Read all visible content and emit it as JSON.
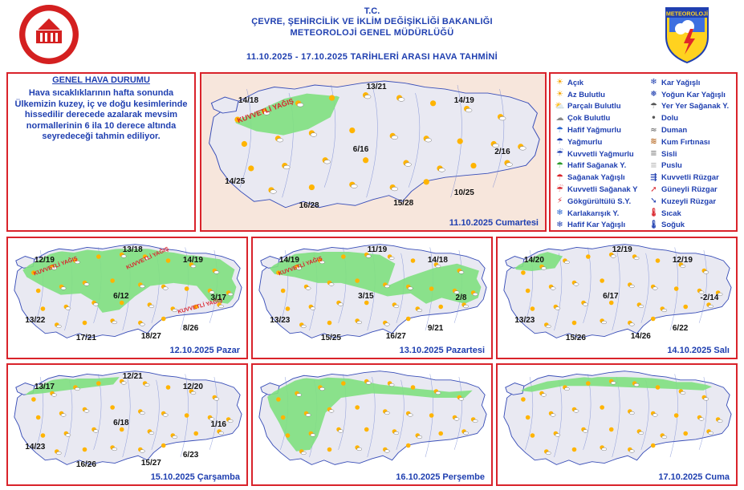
{
  "header": {
    "line1": "T.C.",
    "line2": "ÇEVRE, ŞEHİRCİLİK VE İKLİM DEĞİŞİKLİĞİ BAKANLIĞI",
    "line3": "METEOROLOJİ  GENEL  MÜDÜRLÜĞÜ",
    "line4": "11.10.2025 - 17.10.2025   TARİHLERİ ARASI HAVA TAHMİNİ",
    "logo_text": "METEOROLOJİ"
  },
  "summary": {
    "title": "GENEL HAVA DURUMU",
    "text": "Hava sıcaklıklarının hafta sonunda Ülkemizin kuzey, iç ve doğu kesimlerinde hissedilir derecede azalarak mevsim normallerinin 6 ila 10 derece altında seyredeceği tahmin ediliyor."
  },
  "colors": {
    "frame": "#d9232b",
    "title": "#1f3fb0",
    "map_fill": "#e9e9f2",
    "rain_area": "#7fe07f",
    "sea": "#f7e6dc"
  },
  "days": [
    {
      "date_label": "11.10.2025 Cumartesi",
      "annotations": [
        "KUVVETLİ YAĞIŞ"
      ],
      "temps": [
        "14/18",
        "13/21",
        "14/19",
        "6/16",
        "2/16",
        "14/25",
        "10/25",
        "15/28",
        "16/28"
      ]
    },
    {
      "date_label": "12.10.2025 Pazar",
      "annotations": [
        "KUVVETLİ YAĞIŞ",
        "KUVVETLİ YAĞIŞ",
        "KUVVETLİ YAĞIŞ"
      ],
      "temps": [
        "12/19",
        "13/18",
        "14/19",
        "6/12",
        "3/17",
        "13/22",
        "8/26",
        "18/27",
        "17/21"
      ]
    },
    {
      "date_label": "13.10.2025 Pazartesi",
      "annotations": [
        "KUVVETLİ YAĞIŞ"
      ],
      "temps": [
        "14/19",
        "11/19",
        "14/18",
        "3/15",
        "2/8",
        "13/23",
        "9/21",
        "16/27",
        "15/25"
      ]
    },
    {
      "date_label": "14.10.2025 Salı",
      "annotations": [],
      "temps": [
        "14/20",
        "12/19",
        "12/19",
        "6/17",
        "-2/14",
        "13/23",
        "6/22",
        "14/26",
        "15/26"
      ]
    },
    {
      "date_label": "15.10.2025 Çarşamba",
      "annotations": [],
      "temps": [
        "13/17",
        "12/21",
        "12/20",
        "6/18",
        "1/16",
        "14/23",
        "6/23",
        "15/27",
        "16/26"
      ]
    },
    {
      "date_label": "16.10.2025 Perşembe",
      "annotations": [],
      "temps": []
    },
    {
      "date_label": "17.10.2025 Cuma",
      "annotations": [],
      "temps": []
    }
  ],
  "legend": {
    "col1": [
      {
        "label": "Açık",
        "icon": "sun-icon"
      },
      {
        "label": "Az Bulutlu",
        "icon": "few-clouds-icon"
      },
      {
        "label": "Parçalı Bulutlu",
        "icon": "partly-cloudy-icon"
      },
      {
        "label": "Çok Bulutlu",
        "icon": "cloudy-icon"
      },
      {
        "label": "Hafif Yağmurlu",
        "icon": "light-rain-icon"
      },
      {
        "label": "Yağmurlu",
        "icon": "rain-icon"
      },
      {
        "label": "Kuvvetli Yağmurlu",
        "icon": "heavy-rain-icon"
      },
      {
        "label": "Hafif Sağanak Y.",
        "icon": "light-shower-icon"
      },
      {
        "label": "Sağanak Yağışlı",
        "icon": "shower-icon"
      },
      {
        "label": "Kuvvetli Sağanak Y",
        "icon": "heavy-shower-icon"
      },
      {
        "label": "Gökgürültülü S.Y.",
        "icon": "thunderstorm-icon"
      },
      {
        "label": "Karlakarışık Y.",
        "icon": "sleet-icon"
      },
      {
        "label": "Hafif Kar Yağışlı",
        "icon": "light-snow-icon"
      }
    ],
    "col2": [
      {
        "label": "Kar Yağışlı",
        "icon": "snow-icon"
      },
      {
        "label": "Yoğun Kar Yağışlı",
        "icon": "heavy-snow-icon"
      },
      {
        "label": "Yer Yer Sağanak Y.",
        "icon": "scattered-shower-icon"
      },
      {
        "label": "Dolu",
        "icon": "hail-icon"
      },
      {
        "label": "Duman",
        "icon": "smoke-icon"
      },
      {
        "label": "Kum Fırtınası",
        "icon": "sandstorm-icon"
      },
      {
        "label": "Sisli",
        "icon": "fog-icon"
      },
      {
        "label": "Puslu",
        "icon": "haze-icon"
      },
      {
        "label": "Kuvvetli Rüzgar",
        "icon": "strong-wind-icon"
      },
      {
        "label": "Güneyli Rüzgar",
        "icon": "south-wind-arrow-icon"
      },
      {
        "label": "Kuzeyli Rüzgar",
        "icon": "north-wind-arrow-icon"
      },
      {
        "label": "Sıcak",
        "icon": "hot-thermometer-icon"
      },
      {
        "label": "Soğuk",
        "icon": "cold-thermometer-icon"
      }
    ]
  }
}
